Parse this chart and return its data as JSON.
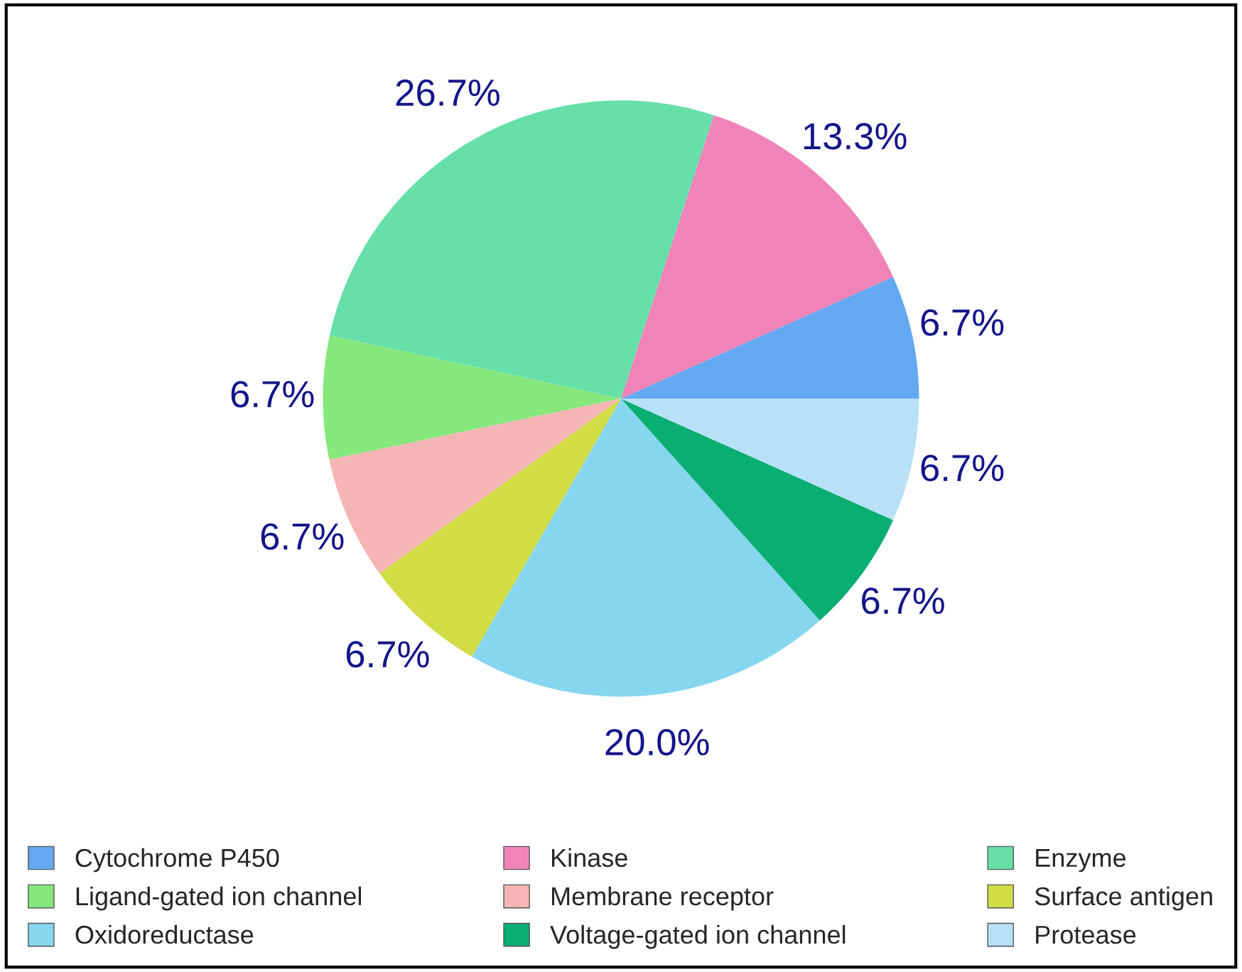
{
  "chart_data": {
    "type": "pie",
    "categories": [
      "Cytochrome P450",
      "Kinase",
      "Enzyme",
      "Ligand-gated ion channel",
      "Membrane receptor",
      "Surface antigen",
      "Oxidoreductase",
      "Voltage-gated ion channel",
      "Protease"
    ],
    "values": [
      6.7,
      13.3,
      26.7,
      6.7,
      6.7,
      6.7,
      20.0,
      6.7,
      6.7
    ],
    "value_labels": [
      "6.7%",
      "13.3%",
      "26.7%",
      "6.7%",
      "6.7%",
      "6.7%",
      "20.0%",
      "6.7%",
      "6.7%"
    ],
    "colors": [
      "#63a8f0",
      "#f083b8",
      "#66e0a8",
      "#84e87c",
      "#f5b5b5",
      "#d2dc44",
      "#86d6f0",
      "#0aae72",
      "#b8e0f6"
    ],
    "legend": "bottom"
  }
}
